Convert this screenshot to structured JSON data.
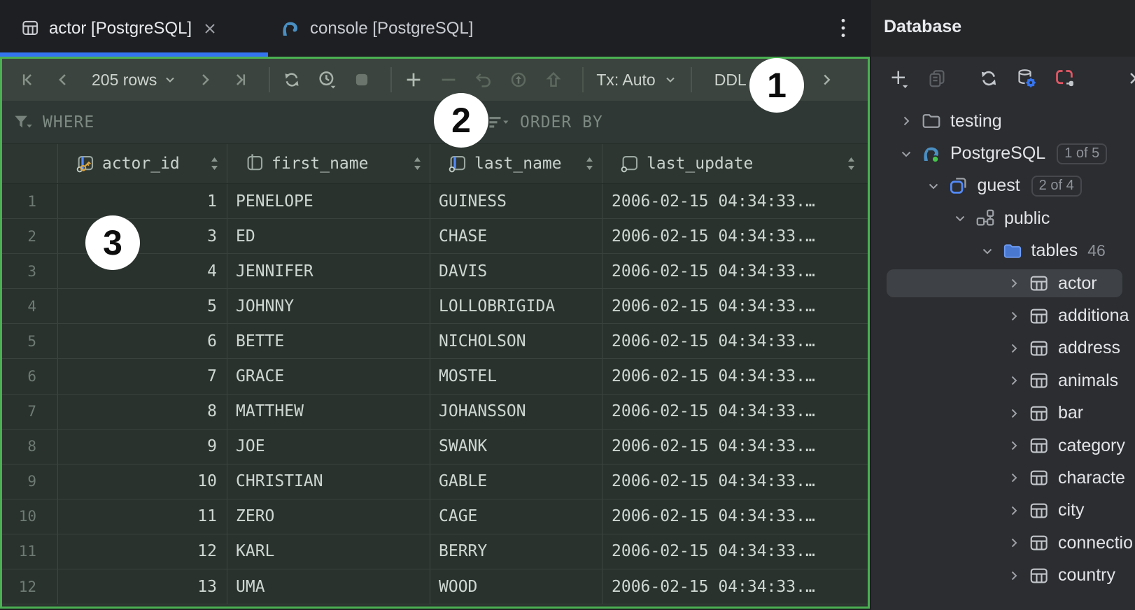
{
  "tabs": {
    "tab1": {
      "label": "actor [PostgreSQL]"
    },
    "tab2": {
      "label": "console [PostgreSQL]"
    }
  },
  "toolbar": {
    "rows_label": "205 rows",
    "tx_label": "Tx: Auto",
    "ddl_label": "DDL"
  },
  "filter": {
    "where_label": "WHERE",
    "order_by_label": "ORDER BY"
  },
  "grid": {
    "columns": [
      {
        "label": "actor_id",
        "icon": "key-column-icon"
      },
      {
        "label": "first_name",
        "icon": "column-icon"
      },
      {
        "label": "last_name",
        "icon": "indexed-column-icon"
      },
      {
        "label": "last_update",
        "icon": "indexed-column-icon"
      }
    ],
    "rows": [
      {
        "num": "1",
        "actor_id": "1",
        "first_name": "PENELOPE",
        "last_name": "GUINESS",
        "last_update": "2006-02-15 04:34:33.…"
      },
      {
        "num": "2",
        "actor_id": "3",
        "first_name": "ED",
        "last_name": "CHASE",
        "last_update": "2006-02-15 04:34:33.…"
      },
      {
        "num": "3",
        "actor_id": "4",
        "first_name": "JENNIFER",
        "last_name": "DAVIS",
        "last_update": "2006-02-15 04:34:33.…"
      },
      {
        "num": "4",
        "actor_id": "5",
        "first_name": "JOHNNY",
        "last_name": "LOLLOBRIGIDA",
        "last_update": "2006-02-15 04:34:33.…"
      },
      {
        "num": "5",
        "actor_id": "6",
        "first_name": "BETTE",
        "last_name": "NICHOLSON",
        "last_update": "2006-02-15 04:34:33.…"
      },
      {
        "num": "6",
        "actor_id": "7",
        "first_name": "GRACE",
        "last_name": "MOSTEL",
        "last_update": "2006-02-15 04:34:33.…"
      },
      {
        "num": "7",
        "actor_id": "8",
        "first_name": "MATTHEW",
        "last_name": "JOHANSSON",
        "last_update": "2006-02-15 04:34:33.…"
      },
      {
        "num": "8",
        "actor_id": "9",
        "first_name": "JOE",
        "last_name": "SWANK",
        "last_update": "2006-02-15 04:34:33.…"
      },
      {
        "num": "9",
        "actor_id": "10",
        "first_name": "CHRISTIAN",
        "last_name": "GABLE",
        "last_update": "2006-02-15 04:34:33.…"
      },
      {
        "num": "10",
        "actor_id": "11",
        "first_name": "ZERO",
        "last_name": "CAGE",
        "last_update": "2006-02-15 04:34:33.…"
      },
      {
        "num": "11",
        "actor_id": "12",
        "first_name": "KARL",
        "last_name": "BERRY",
        "last_update": "2006-02-15 04:34:33.…"
      },
      {
        "num": "12",
        "actor_id": "13",
        "first_name": "UMA",
        "last_name": "WOOD",
        "last_update": "2006-02-15 04:34:33.…"
      }
    ]
  },
  "sidebar": {
    "title": "Database",
    "tree": [
      {
        "label": "testing",
        "level": 0,
        "icon": "folder",
        "chevron": "closed"
      },
      {
        "label": "PostgreSQL",
        "level": 0,
        "icon": "postgres",
        "chevron": "open",
        "badge": "1 of 5"
      },
      {
        "label": "guest",
        "level": 1,
        "icon": "database",
        "chevron": "open",
        "badge": "2 of 4"
      },
      {
        "label": "public",
        "level": 2,
        "icon": "schema",
        "chevron": "open"
      },
      {
        "label": "tables",
        "level": 3,
        "icon": "folder-blue",
        "chevron": "open",
        "count": "46"
      },
      {
        "label": "actor",
        "level": 4,
        "icon": "table",
        "chevron": "closed",
        "selected": true
      },
      {
        "label": "additiona",
        "level": 4,
        "icon": "table",
        "chevron": "closed"
      },
      {
        "label": "address",
        "level": 4,
        "icon": "table",
        "chevron": "closed"
      },
      {
        "label": "animals",
        "level": 4,
        "icon": "table",
        "chevron": "closed"
      },
      {
        "label": "bar",
        "level": 4,
        "icon": "table",
        "chevron": "closed"
      },
      {
        "label": "category",
        "level": 4,
        "icon": "table",
        "chevron": "closed"
      },
      {
        "label": "characte",
        "level": 4,
        "icon": "table",
        "chevron": "closed"
      },
      {
        "label": "city",
        "level": 4,
        "icon": "table",
        "chevron": "closed"
      },
      {
        "label": "connectio",
        "level": 4,
        "icon": "table",
        "chevron": "closed"
      },
      {
        "label": "country",
        "level": 4,
        "icon": "table",
        "chevron": "closed"
      }
    ]
  },
  "annotations": [
    {
      "label": "1"
    },
    {
      "label": "2"
    },
    {
      "label": "3"
    }
  ],
  "colors": {
    "accent_green": "#4bb052",
    "accent_blue": "#3574f0",
    "key_gold": "#d9a343",
    "postgres_blue": "#4a8fc2",
    "error_red": "#e55765"
  }
}
